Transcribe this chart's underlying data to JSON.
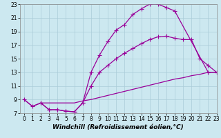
{
  "line1_x": [
    0,
    1,
    2,
    3,
    4,
    5,
    6,
    7,
    8,
    9,
    10,
    11,
    12,
    13,
    14,
    15,
    16,
    17,
    18,
    22,
    23
  ],
  "line1_y": [
    9.0,
    8.0,
    8.5,
    7.5,
    7.5,
    7.3,
    7.2,
    8.5,
    13.0,
    15.5,
    17.5,
    19.2,
    20.0,
    21.5,
    22.3,
    23.0,
    23.0,
    22.5,
    22.0,
    13.0,
    13.0
  ],
  "line2_x": [
    2,
    3,
    4,
    5,
    6,
    7,
    8,
    9,
    10,
    11,
    12,
    13,
    14,
    15,
    16,
    17,
    18,
    19,
    20,
    21,
    22,
    23
  ],
  "line2_y": [
    8.5,
    7.5,
    7.5,
    7.3,
    7.2,
    8.5,
    11.0,
    13.0,
    14.0,
    15.0,
    15.8,
    16.5,
    17.2,
    17.8,
    18.2,
    18.3,
    18.0,
    17.8,
    17.8,
    15.0,
    14.0,
    13.0
  ],
  "line3_x": [
    0,
    1,
    2,
    3,
    4,
    5,
    6,
    7,
    8,
    9,
    10,
    11,
    12,
    13,
    14,
    15,
    16,
    17,
    18,
    19,
    20,
    21,
    22,
    23
  ],
  "line3_y": [
    9.0,
    8.0,
    8.5,
    8.5,
    8.5,
    8.5,
    8.5,
    8.8,
    9.0,
    9.3,
    9.6,
    9.9,
    10.2,
    10.5,
    10.8,
    11.1,
    11.4,
    11.7,
    12.0,
    12.2,
    12.5,
    12.7,
    13.0,
    13.0
  ],
  "color": "#990099",
  "bg_color": "#cce8f0",
  "grid_color": "#aaccd8",
  "xlim": [
    -0.5,
    23
  ],
  "ylim": [
    7,
    23
  ],
  "xticks": [
    0,
    1,
    2,
    3,
    4,
    5,
    6,
    7,
    8,
    9,
    10,
    11,
    12,
    13,
    14,
    15,
    16,
    17,
    18,
    19,
    20,
    21,
    22,
    23
  ],
  "yticks": [
    7,
    9,
    11,
    13,
    15,
    17,
    19,
    21,
    23
  ],
  "xlabel": "Windchill (Refroidissement éolien,°C)",
  "marker": "+",
  "markersize": 4,
  "linewidth": 0.9,
  "xlabel_fontsize": 6.5,
  "tick_fontsize": 5.5
}
